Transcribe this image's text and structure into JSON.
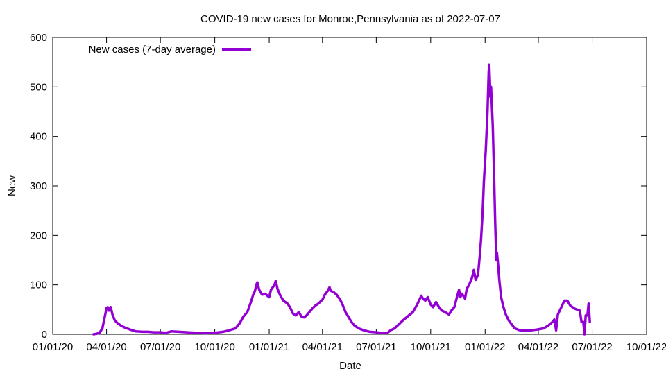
{
  "chart_data": {
    "type": "line",
    "title": "COVID-19 new cases for Monroe,Pennsylvania as of 2022-07-07",
    "xlabel": "Date",
    "ylabel": "New",
    "xlim": [
      "2020-01-01",
      "2022-10-01"
    ],
    "ylim": [
      0,
      600
    ],
    "x_ticks": [
      {
        "label": "01/01/20",
        "date": "2020-01-01"
      },
      {
        "label": "04/01/20",
        "date": "2020-04-01"
      },
      {
        "label": "07/01/20",
        "date": "2020-07-01"
      },
      {
        "label": "10/01/20",
        "date": "2020-10-01"
      },
      {
        "label": "01/01/21",
        "date": "2021-01-01"
      },
      {
        "label": "04/01/21",
        "date": "2021-04-01"
      },
      {
        "label": "07/01/21",
        "date": "2021-07-01"
      },
      {
        "label": "10/01/21",
        "date": "2021-10-01"
      },
      {
        "label": "01/01/22",
        "date": "2022-01-01"
      },
      {
        "label": "04/01/22",
        "date": "2022-04-01"
      },
      {
        "label": "07/01/22",
        "date": "2022-07-01"
      },
      {
        "label": "10/01/22",
        "date": "2022-10-01"
      }
    ],
    "y_ticks": [
      0,
      100,
      200,
      300,
      400,
      500,
      600
    ],
    "grid": false,
    "legend_position": "top-left",
    "colors": {
      "series": "#9400d3"
    },
    "series": [
      {
        "name": "New cases (7-day average)",
        "points": [
          [
            "2020-03-10",
            0
          ],
          [
            "2020-03-15",
            1
          ],
          [
            "2020-03-20",
            3
          ],
          [
            "2020-03-25",
            12
          ],
          [
            "2020-03-29",
            35
          ],
          [
            "2020-04-01",
            53
          ],
          [
            "2020-04-03",
            55
          ],
          [
            "2020-04-05",
            48
          ],
          [
            "2020-04-08",
            55
          ],
          [
            "2020-04-11",
            40
          ],
          [
            "2020-04-15",
            28
          ],
          [
            "2020-04-20",
            22
          ],
          [
            "2020-04-25",
            18
          ],
          [
            "2020-05-01",
            14
          ],
          [
            "2020-05-10",
            10
          ],
          [
            "2020-05-20",
            6
          ],
          [
            "2020-06-01",
            5
          ],
          [
            "2020-06-10",
            5
          ],
          [
            "2020-06-20",
            4
          ],
          [
            "2020-07-01",
            4
          ],
          [
            "2020-07-10",
            3
          ],
          [
            "2020-07-20",
            6
          ],
          [
            "2020-08-01",
            5
          ],
          [
            "2020-08-15",
            4
          ],
          [
            "2020-09-01",
            3
          ],
          [
            "2020-09-15",
            2
          ],
          [
            "2020-10-01",
            3
          ],
          [
            "2020-10-15",
            5
          ],
          [
            "2020-10-25",
            8
          ],
          [
            "2020-11-05",
            12
          ],
          [
            "2020-11-12",
            22
          ],
          [
            "2020-11-18",
            35
          ],
          [
            "2020-11-25",
            45
          ],
          [
            "2020-12-01",
            65
          ],
          [
            "2020-12-05",
            80
          ],
          [
            "2020-12-08",
            88
          ],
          [
            "2020-12-10",
            100
          ],
          [
            "2020-12-12",
            105
          ],
          [
            "2020-12-15",
            90
          ],
          [
            "2020-12-20",
            80
          ],
          [
            "2020-12-25",
            82
          ],
          [
            "2021-01-01",
            75
          ],
          [
            "2021-01-04",
            90
          ],
          [
            "2021-01-07",
            95
          ],
          [
            "2021-01-10",
            100
          ],
          [
            "2021-01-12",
            108
          ],
          [
            "2021-01-15",
            92
          ],
          [
            "2021-01-20",
            78
          ],
          [
            "2021-01-25",
            68
          ],
          [
            "2021-02-01",
            62
          ],
          [
            "2021-02-05",
            55
          ],
          [
            "2021-02-10",
            42
          ],
          [
            "2021-02-15",
            38
          ],
          [
            "2021-02-20",
            45
          ],
          [
            "2021-02-25",
            35
          ],
          [
            "2021-03-01",
            34
          ],
          [
            "2021-03-05",
            38
          ],
          [
            "2021-03-10",
            45
          ],
          [
            "2021-03-15",
            52
          ],
          [
            "2021-03-20",
            58
          ],
          [
            "2021-03-25",
            62
          ],
          [
            "2021-04-01",
            70
          ],
          [
            "2021-04-05",
            80
          ],
          [
            "2021-04-10",
            88
          ],
          [
            "2021-04-13",
            95
          ],
          [
            "2021-04-15",
            88
          ],
          [
            "2021-04-20",
            85
          ],
          [
            "2021-04-25",
            80
          ],
          [
            "2021-05-01",
            70
          ],
          [
            "2021-05-05",
            60
          ],
          [
            "2021-05-10",
            45
          ],
          [
            "2021-05-15",
            35
          ],
          [
            "2021-05-20",
            25
          ],
          [
            "2021-05-25",
            18
          ],
          [
            "2021-06-01",
            12
          ],
          [
            "2021-06-10",
            8
          ],
          [
            "2021-06-20",
            5
          ],
          [
            "2021-07-01",
            4
          ],
          [
            "2021-07-10",
            3
          ],
          [
            "2021-07-20",
            3
          ],
          [
            "2021-07-25",
            8
          ],
          [
            "2021-08-01",
            12
          ],
          [
            "2021-08-08",
            20
          ],
          [
            "2021-08-15",
            28
          ],
          [
            "2021-08-22",
            35
          ],
          [
            "2021-09-01",
            45
          ],
          [
            "2021-09-08",
            60
          ],
          [
            "2021-09-12",
            70
          ],
          [
            "2021-09-15",
            78
          ],
          [
            "2021-09-18",
            72
          ],
          [
            "2021-09-22",
            68
          ],
          [
            "2021-09-26",
            75
          ],
          [
            "2021-10-01",
            60
          ],
          [
            "2021-10-05",
            55
          ],
          [
            "2021-10-10",
            65
          ],
          [
            "2021-10-15",
            55
          ],
          [
            "2021-10-20",
            48
          ],
          [
            "2021-10-25",
            45
          ],
          [
            "2021-11-01",
            40
          ],
          [
            "2021-11-05",
            48
          ],
          [
            "2021-11-10",
            55
          ],
          [
            "2021-11-15",
            78
          ],
          [
            "2021-11-18",
            90
          ],
          [
            "2021-11-20",
            75
          ],
          [
            "2021-11-23",
            82
          ],
          [
            "2021-11-28",
            72
          ],
          [
            "2021-12-01",
            92
          ],
          [
            "2021-12-05",
            100
          ],
          [
            "2021-12-10",
            115
          ],
          [
            "2021-12-13",
            130
          ],
          [
            "2021-12-16",
            110
          ],
          [
            "2021-12-20",
            120
          ],
          [
            "2021-12-23",
            160
          ],
          [
            "2021-12-25",
            190
          ],
          [
            "2021-12-28",
            250
          ],
          [
            "2021-12-30",
            310
          ],
          [
            "2022-01-02",
            370
          ],
          [
            "2022-01-05",
            450
          ],
          [
            "2022-01-07",
            530
          ],
          [
            "2022-01-08",
            545
          ],
          [
            "2022-01-10",
            480
          ],
          [
            "2022-01-11",
            500
          ],
          [
            "2022-01-14",
            420
          ],
          [
            "2022-01-16",
            330
          ],
          [
            "2022-01-18",
            230
          ],
          [
            "2022-01-20",
            150
          ],
          [
            "2022-01-21",
            165
          ],
          [
            "2022-01-23",
            140
          ],
          [
            "2022-01-25",
            110
          ],
          [
            "2022-01-28",
            75
          ],
          [
            "2022-02-01",
            55
          ],
          [
            "2022-02-05",
            40
          ],
          [
            "2022-02-10",
            28
          ],
          [
            "2022-02-15",
            20
          ],
          [
            "2022-02-20",
            12
          ],
          [
            "2022-03-01",
            8
          ],
          [
            "2022-03-10",
            8
          ],
          [
            "2022-03-20",
            8
          ],
          [
            "2022-04-01",
            10
          ],
          [
            "2022-04-10",
            12
          ],
          [
            "2022-04-18",
            18
          ],
          [
            "2022-04-25",
            25
          ],
          [
            "2022-04-28",
            30
          ],
          [
            "2022-05-01",
            8
          ],
          [
            "2022-05-04",
            40
          ],
          [
            "2022-05-10",
            55
          ],
          [
            "2022-05-15",
            68
          ],
          [
            "2022-05-20",
            68
          ],
          [
            "2022-05-25",
            58
          ],
          [
            "2022-06-01",
            52
          ],
          [
            "2022-06-10",
            48
          ],
          [
            "2022-06-13",
            25
          ],
          [
            "2022-06-16",
            25
          ],
          [
            "2022-06-18",
            0
          ],
          [
            "2022-06-20",
            38
          ],
          [
            "2022-06-23",
            38
          ],
          [
            "2022-06-25",
            62
          ],
          [
            "2022-06-27",
            25
          ]
        ]
      }
    ]
  }
}
